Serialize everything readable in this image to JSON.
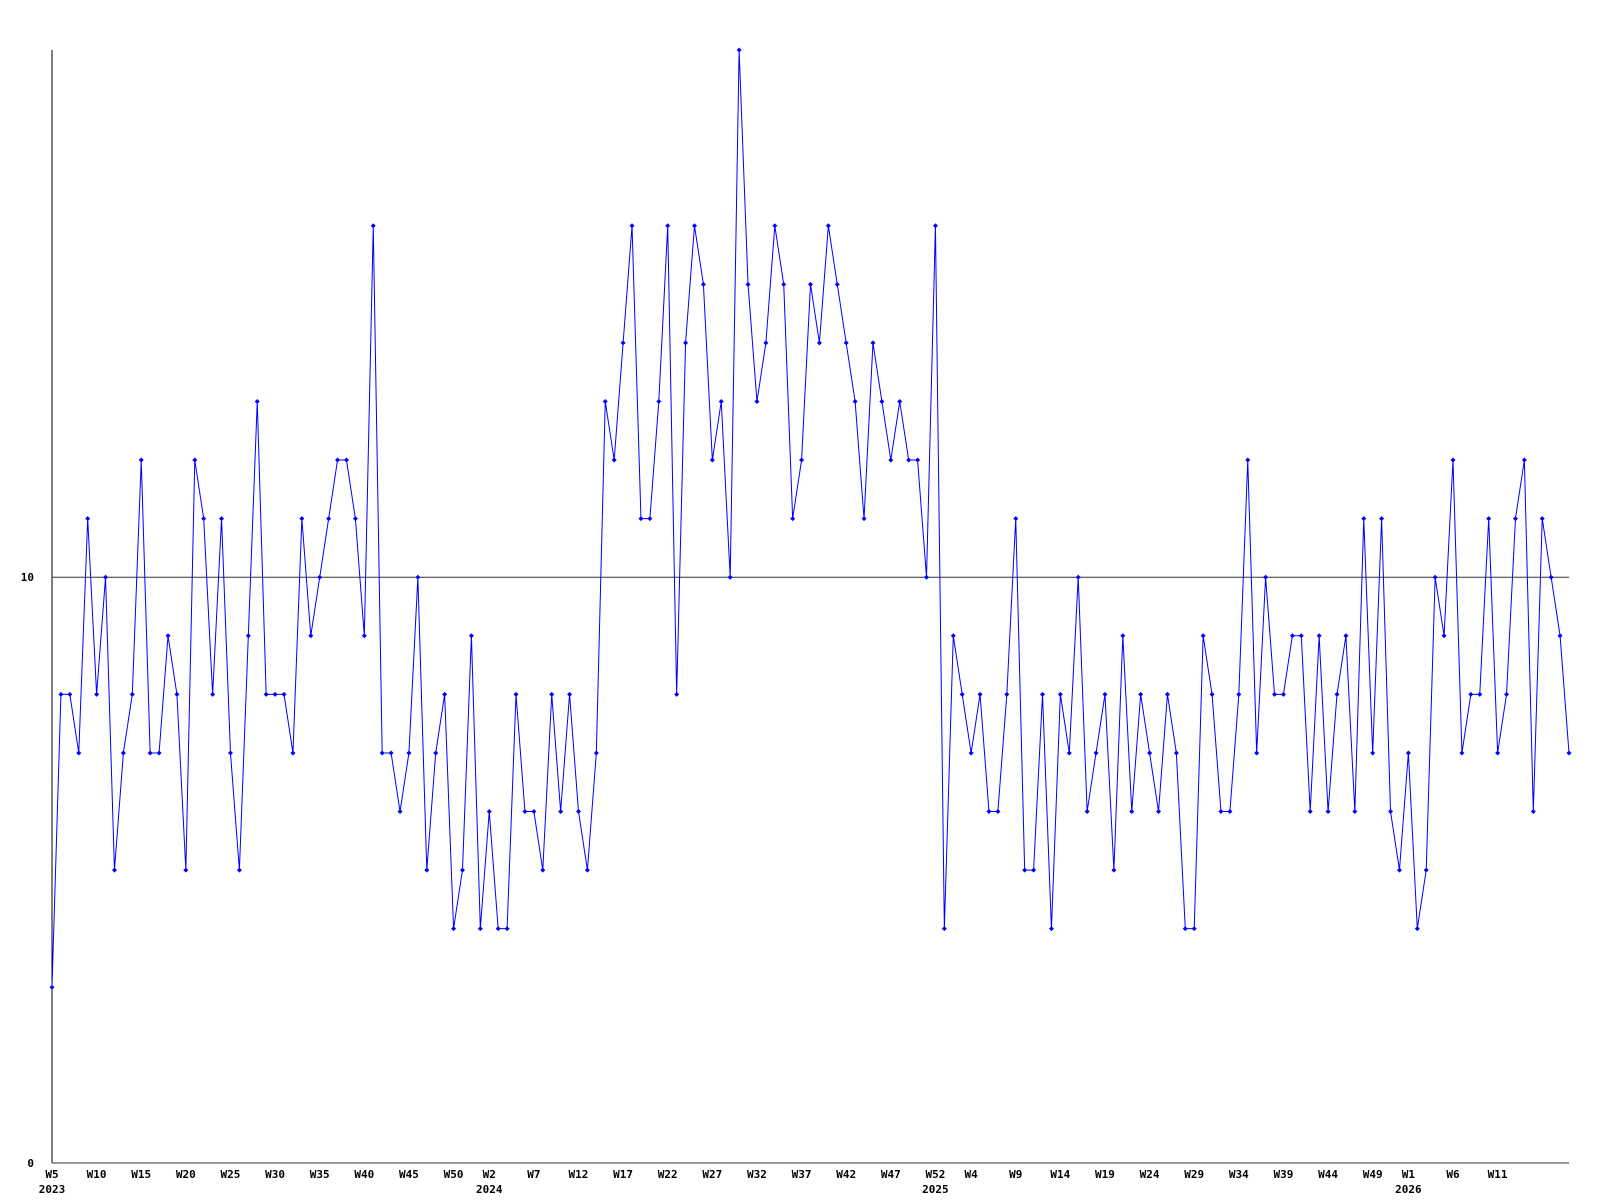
{
  "chart_data": {
    "type": "line",
    "color": "#0000ff",
    "grid": true,
    "ylim": [
      0,
      19
    ],
    "yticks": [
      0,
      10
    ],
    "categories": [
      "W5",
      null,
      null,
      null,
      null,
      "W10",
      null,
      null,
      null,
      null,
      "W15",
      null,
      null,
      null,
      null,
      "W20",
      null,
      null,
      null,
      null,
      "W25",
      null,
      null,
      null,
      null,
      "W30",
      null,
      null,
      null,
      null,
      "W35",
      null,
      null,
      null,
      null,
      "W40",
      null,
      null,
      null,
      null,
      "W45",
      null,
      null,
      null,
      null,
      "W50",
      null,
      null,
      null,
      "W2",
      null,
      null,
      null,
      null,
      "W7",
      null,
      null,
      null,
      null,
      "W12",
      null,
      null,
      null,
      null,
      "W17",
      null,
      null,
      null,
      null,
      "W22",
      null,
      null,
      null,
      null,
      "W27",
      null,
      null,
      null,
      null,
      "W32",
      null,
      null,
      null,
      null,
      "W37",
      null,
      null,
      null,
      null,
      "W42",
      null,
      null,
      null,
      null,
      "W47",
      null,
      null,
      null,
      null,
      "W52",
      null,
      null,
      null,
      "W4",
      null,
      null,
      null,
      null,
      "W9",
      null,
      null,
      null,
      null,
      "W14",
      null,
      null,
      null,
      null,
      "W19",
      null,
      null,
      null,
      null,
      "W24",
      null,
      null,
      null,
      null,
      "W29",
      null,
      null,
      null,
      null,
      "W34",
      null,
      null,
      null,
      null,
      "W39",
      null,
      null,
      null,
      null,
      "W44",
      null,
      null,
      null,
      null,
      "W49",
      null,
      null,
      null,
      "W1",
      null,
      null,
      null,
      null,
      "W6",
      null,
      null,
      null,
      null,
      "W11",
      null,
      null,
      null,
      null,
      null,
      null,
      null,
      null
    ],
    "category_years": [
      "2023",
      null,
      null,
      null,
      null,
      null,
      null,
      null,
      null,
      null,
      null,
      null,
      null,
      null,
      null,
      null,
      null,
      null,
      null,
      null,
      null,
      null,
      null,
      null,
      null,
      null,
      null,
      null,
      null,
      null,
      null,
      null,
      null,
      null,
      null,
      null,
      null,
      null,
      null,
      null,
      null,
      null,
      null,
      null,
      null,
      null,
      null,
      null,
      null,
      "2024",
      null,
      null,
      null,
      null,
      null,
      null,
      null,
      null,
      null,
      null,
      null,
      null,
      null,
      null,
      null,
      null,
      null,
      null,
      null,
      null,
      null,
      null,
      null,
      null,
      null,
      null,
      null,
      null,
      null,
      null,
      null,
      null,
      null,
      null,
      null,
      null,
      null,
      null,
      null,
      null,
      null,
      null,
      null,
      null,
      null,
      null,
      null,
      null,
      null,
      "2025",
      null,
      null,
      null,
      null,
      null,
      null,
      null,
      null,
      null,
      null,
      null,
      null,
      null,
      null,
      null,
      null,
      null,
      null,
      null,
      null,
      null,
      null,
      null,
      null,
      null,
      null,
      null,
      null,
      null,
      null,
      null,
      null,
      null,
      null,
      null,
      null,
      null,
      null,
      null,
      null,
      null,
      null,
      null,
      null,
      null,
      null,
      null,
      null,
      null,
      null,
      null,
      null,
      "2026",
      null,
      null,
      null,
      null,
      null,
      null,
      null,
      null,
      null,
      null,
      null,
      null,
      null,
      null,
      null,
      null,
      null,
      null
    ],
    "values": [
      3,
      8,
      8,
      7,
      11,
      8,
      10,
      5,
      7,
      8,
      12,
      7,
      7,
      9,
      8,
      5,
      12,
      11,
      8,
      11,
      7,
      5,
      9,
      13,
      8,
      8,
      8,
      7,
      11,
      9,
      10,
      11,
      12,
      12,
      11,
      9,
      16,
      7,
      7,
      6,
      7,
      10,
      5,
      7,
      8,
      4,
      5,
      9,
      4,
      6,
      4,
      4,
      8,
      6,
      6,
      5,
      8,
      6,
      8,
      6,
      5,
      7,
      13,
      12,
      14,
      16,
      11,
      11,
      13,
      16,
      8,
      14,
      16,
      15,
      12,
      13,
      10,
      19,
      15,
      13,
      14,
      16,
      15,
      11,
      12,
      15,
      14,
      16,
      15,
      14,
      13,
      11,
      14,
      13,
      12,
      13,
      12,
      12,
      10,
      16,
      4,
      9,
      8,
      7,
      8,
      6,
      6,
      8,
      11,
      5,
      5,
      8,
      4,
      8,
      7,
      10,
      6,
      7,
      8,
      5,
      9,
      6,
      8,
      7,
      6,
      8,
      7,
      4,
      4,
      9,
      8,
      6,
      6,
      8,
      12,
      7,
      10,
      8,
      8,
      9,
      9,
      6,
      9,
      6,
      8,
      9,
      6,
      11,
      7,
      11,
      6,
      5,
      7,
      4,
      5,
      10,
      9,
      12,
      7,
      8,
      8,
      11,
      7,
      8,
      11,
      12,
      6,
      11,
      10,
      9,
      7
    ]
  }
}
